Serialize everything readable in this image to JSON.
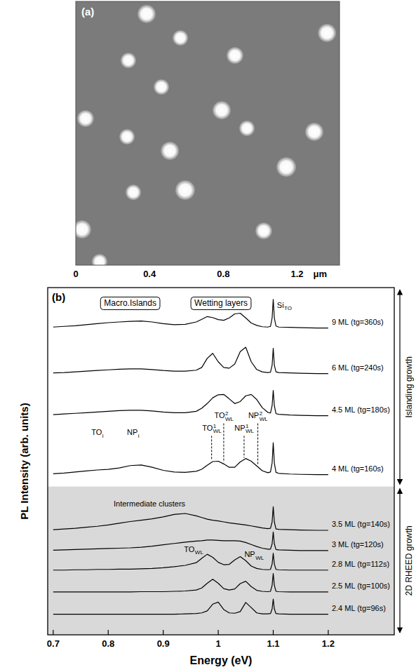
{
  "chart_data": [
    {
      "type": "scatter",
      "panel": "(a)",
      "xlabel": "μm",
      "xlim": [
        0,
        1.43
      ],
      "ylim": [
        0,
        1.43
      ],
      "xticks": [
        0,
        0.4,
        0.8,
        1.2
      ],
      "tick_labels": "x",
      "color": "#ffffff",
      "x": [
        0.384,
        1.362,
        0.567,
        0.285,
        0.863,
        0.464,
        0.053,
        0.791,
        0.278,
        0.928,
        1.293,
        0.51,
        1.141,
        0.312,
        0.593,
        0.034,
        1.019,
        0.129
      ],
      "values": [
        1.362,
        1.259,
        1.232,
        1.11,
        1.137,
        0.966,
        0.795,
        0.84,
        0.696,
        0.742,
        0.723,
        0.62,
        0.532,
        0.395,
        0.407,
        0.194,
        0.186,
        0.019
      ],
      "sizes": [
        0.099,
        0.099,
        0.084,
        0.084,
        0.091,
        0.084,
        0.091,
        0.099,
        0.084,
        0.084,
        0.099,
        0.099,
        0.107,
        0.084,
        0.107,
        0.099,
        0.091,
        0.084
      ]
    },
    {
      "type": "line",
      "panel": "(b)",
      "xlabel": "Energy (eV)",
      "ylabel": "PL Intensity (arb. units)",
      "xlim": [
        0.69,
        1.32
      ],
      "xticks": [
        0.7,
        0.8,
        0.9,
        1,
        1.1,
        1.2
      ],
      "ylim": [
        0,
        103
      ],
      "tick_labels": "x",
      "x": [
        0.7,
        0.72,
        0.74,
        0.76,
        0.78,
        0.8,
        0.82,
        0.84,
        0.86,
        0.88,
        0.9,
        0.92,
        0.94,
        0.96,
        0.97,
        0.98,
        0.99,
        1.0,
        1.01,
        1.02,
        1.03,
        1.04,
        1.05,
        1.06,
        1.07,
        1.08,
        1.09,
        1.095,
        1.098,
        1.1,
        1.102,
        1.105,
        1.11,
        1.13,
        1.15,
        1.18,
        1.2
      ],
      "series": [
        {
          "name": "9 ML (tg=360s)",
          "color": "#000000",
          "offset": 91,
          "values": [
            0.3,
            0.5,
            0.7,
            1.0,
            1.3,
            1.6,
            1.8,
            2.0,
            2.1,
            1.8,
            1.3,
            1.0,
            1.1,
            1.8,
            2.6,
            3.4,
            3.1,
            2.5,
            2.3,
            3.0,
            4.2,
            4.4,
            3.0,
            1.5,
            0.8,
            0.4,
            0.3,
            0.5,
            3.0,
            8.5,
            3.0,
            0.6,
            0.3,
            0.2,
            0.1,
            0,
            0
          ]
        },
        {
          "name": "6 ML (tg=240s)",
          "color": "#000000",
          "offset": 77.5,
          "values": [
            0.2,
            0.3,
            0.5,
            0.7,
            0.9,
            1.1,
            1.3,
            1.4,
            1.4,
            1.2,
            0.9,
            0.7,
            0.7,
            1.0,
            1.8,
            4.5,
            6.0,
            3.5,
            1.8,
            1.6,
            2.8,
            6.5,
            7.8,
            3.5,
            1.2,
            0.5,
            0.3,
            0.4,
            2.5,
            7.5,
            2.5,
            0.5,
            0.3,
            0.2,
            0.1,
            0,
            0
          ]
        },
        {
          "name": "4.5 ML (tg=180s)",
          "color": "#000000",
          "offset": 65,
          "values": [
            0.3,
            0.5,
            0.7,
            0.9,
            1.1,
            1.3,
            1.5,
            1.6,
            1.6,
            1.4,
            1.1,
            0.9,
            0.9,
            1.3,
            2.2,
            3.6,
            5.3,
            6.2,
            6.3,
            5.0,
            3.6,
            4.2,
            5.9,
            6.3,
            4.8,
            2.4,
            1.0,
            0.8,
            3.0,
            7.5,
            3.0,
            0.6,
            0.4,
            0.2,
            0.1,
            0,
            0
          ]
        },
        {
          "name": "4 ML (tg=160s)",
          "color": "#000000",
          "offset": 47.5,
          "values": [
            0.3,
            0.5,
            0.8,
            1.1,
            1.4,
            1.6,
            2.0,
            2.7,
            2.9,
            2.2,
            1.3,
            0.8,
            0.7,
            1.0,
            1.6,
            2.8,
            3.9,
            4.0,
            3.2,
            2.2,
            2.2,
            3.8,
            4.8,
            4.0,
            2.6,
            1.2,
            0.6,
            0.8,
            3.5,
            9.5,
            3.5,
            0.7,
            0.4,
            0.2,
            0.1,
            0,
            0
          ]
        },
        {
          "name": "3.5 ML (tg=140s)",
          "color": "#000000",
          "offset": 31,
          "values": [
            0.2,
            0.4,
            0.6,
            0.9,
            1.2,
            1.6,
            2.1,
            2.6,
            3.0,
            3.4,
            4.0,
            4.7,
            5.0,
            4.3,
            3.8,
            3.3,
            3.0,
            2.8,
            2.5,
            2.2,
            2.0,
            1.8,
            1.6,
            1.3,
            1.0,
            0.7,
            0.5,
            0.6,
            2.5,
            7.0,
            2.5,
            0.4,
            0.3,
            0.2,
            0.1,
            0,
            0
          ]
        },
        {
          "name": "3 ML (tg=120s)",
          "color": "#000000",
          "offset": 25,
          "values": [
            0.1,
            0.2,
            0.3,
            0.4,
            0.5,
            0.6,
            0.7,
            0.8,
            1.0,
            1.3,
            1.7,
            2.1,
            2.5,
            2.8,
            2.9,
            3.1,
            3.1,
            3.0,
            2.9,
            2.9,
            2.9,
            2.8,
            2.4,
            1.8,
            1.2,
            0.7,
            0.4,
            0.4,
            2.0,
            5.5,
            2.0,
            0.3,
            0.2,
            0.1,
            0,
            0,
            0
          ]
        },
        {
          "name": "2.8 ML (tg=112s)",
          "color": "#000000",
          "offset": 19.2,
          "values": [
            0,
            0,
            0.1,
            0.1,
            0.2,
            0.2,
            0.3,
            0.3,
            0.4,
            0.5,
            0.7,
            1.0,
            1.4,
            2.2,
            3.5,
            4.7,
            3.8,
            2.3,
            1.6,
            1.7,
            3.0,
            4.0,
            2.8,
            1.2,
            0.5,
            0.2,
            0.1,
            0.2,
            1.8,
            5.0,
            1.8,
            0.2,
            0.1,
            0,
            0,
            0,
            0
          ]
        },
        {
          "name": "2.5 ML (tg=100s)",
          "color": "#000000",
          "offset": 12.7,
          "values": [
            0,
            0,
            0,
            0,
            0,
            0,
            0,
            0,
            0.1,
            0.1,
            0.1,
            0.2,
            0.3,
            0.6,
            1.2,
            2.6,
            3.8,
            2.6,
            1.0,
            0.6,
            0.9,
            2.5,
            3.2,
            1.6,
            0.5,
            0.2,
            0.1,
            0.2,
            2.0,
            5.5,
            2.0,
            0.2,
            0.1,
            0,
            0,
            0,
            0
          ]
        },
        {
          "name": "2.4 ML (tg=96s)",
          "color": "#000000",
          "offset": 6.1,
          "values": [
            0,
            0,
            0,
            0,
            0,
            0,
            0,
            0,
            0,
            0,
            0,
            0,
            0.1,
            0.2,
            0.4,
            1.0,
            3.0,
            3.6,
            1.4,
            0.4,
            0.3,
            0.8,
            3.5,
            2.0,
            0.4,
            0.1,
            0.1,
            0.2,
            1.6,
            4.5,
            1.6,
            0.2,
            0.1,
            0,
            0,
            0,
            0
          ]
        }
      ],
      "boxed_labels": [
        {
          "text": "Macro.Islands",
          "x": 0.84,
          "y": 97.5
        },
        {
          "text": "Wetting layers",
          "x": 1.005,
          "y": 97.5
        }
      ],
      "annotations": [
        {
          "text": "Si",
          "sub": "TO",
          "x": 1.12,
          "y": 97
        },
        {
          "text": "TO",
          "sub": "i",
          "x": 0.78,
          "y": 59.2
        },
        {
          "text": "NP",
          "sub": "i",
          "x": 0.845,
          "y": 59.2
        },
        {
          "text": "TO",
          "sup": "1",
          "sub": "WL",
          "x": 0.988,
          "y": 60.5,
          "line_to": 51.8,
          "line_style": "dashed"
        },
        {
          "text": "TO",
          "sup": "2",
          "sub": "WL",
          "x": 1.01,
          "y": 64.2,
          "line_to": 51.2,
          "line_style": "dashed"
        },
        {
          "text": "NP",
          "sup": "1",
          "sub": "WL",
          "x": 1.047,
          "y": 60.5,
          "line_to": 52.5,
          "line_style": "dashed"
        },
        {
          "text": "NP",
          "sup": "2",
          "sub": "WL",
          "x": 1.072,
          "y": 64.2,
          "line_to": 50.3,
          "line_style": "dashed"
        },
        {
          "text": "Intermediate clusters",
          "x": 0.875,
          "y": 38
        },
        {
          "text": "TO",
          "sub": "WL",
          "x": 0.955,
          "y": 24.5
        },
        {
          "text": "NP",
          "sub": "WL",
          "x": 1.065,
          "y": 23.0
        }
      ],
      "regions": [
        {
          "label": "Islanding growth",
          "ylim": [
            44,
            103
          ]
        },
        {
          "label": "2D RHEED growth",
          "ylim": [
            0,
            44
          ],
          "color": "#d9d9d9"
        }
      ]
    }
  ]
}
